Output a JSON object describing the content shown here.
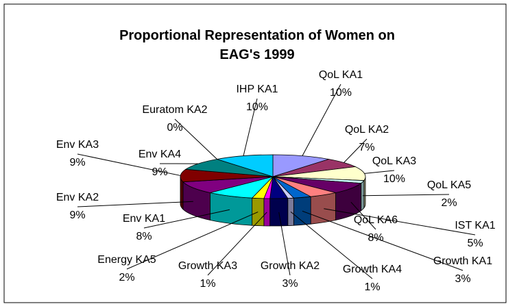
{
  "chart_data": {
    "type": "pie3d",
    "title": "Proportional Representation of Women on EAG's 1999",
    "categories": [
      "QoL KA1",
      "QoL KA2",
      "QoL KA3",
      "QoL KA5",
      "QoL KA6",
      "IST KA1",
      "Growth KA1",
      "Growth KA4",
      "Growth KA2",
      "Growth KA3",
      "Energy KA5",
      "Env KA1",
      "Env KA2",
      "Env KA3",
      "Env KA4",
      "Euratom KA2",
      "IHP KA1"
    ],
    "values": [
      10,
      7,
      10,
      2,
      8,
      5,
      3,
      1,
      3,
      1,
      2,
      8,
      9,
      9,
      9,
      0,
      10
    ],
    "value_labels": [
      "10%",
      "7%",
      "10%",
      "2%",
      "8%",
      "5%",
      "3%",
      "1%",
      "3%",
      "1%",
      "2%",
      "8%",
      "9%",
      "9%",
      "9%",
      "0%",
      "10%"
    ],
    "colors": [
      "#9999ff",
      "#993366",
      "#ffffcc",
      "#ccffff",
      "#660066",
      "#ff8080",
      "#0066cc",
      "#ccccff",
      "#000080",
      "#ff00ff",
      "#ffff00",
      "#00ffff",
      "#800080",
      "#800000",
      "#008080",
      "#0000ff",
      "#00ccff"
    ]
  }
}
